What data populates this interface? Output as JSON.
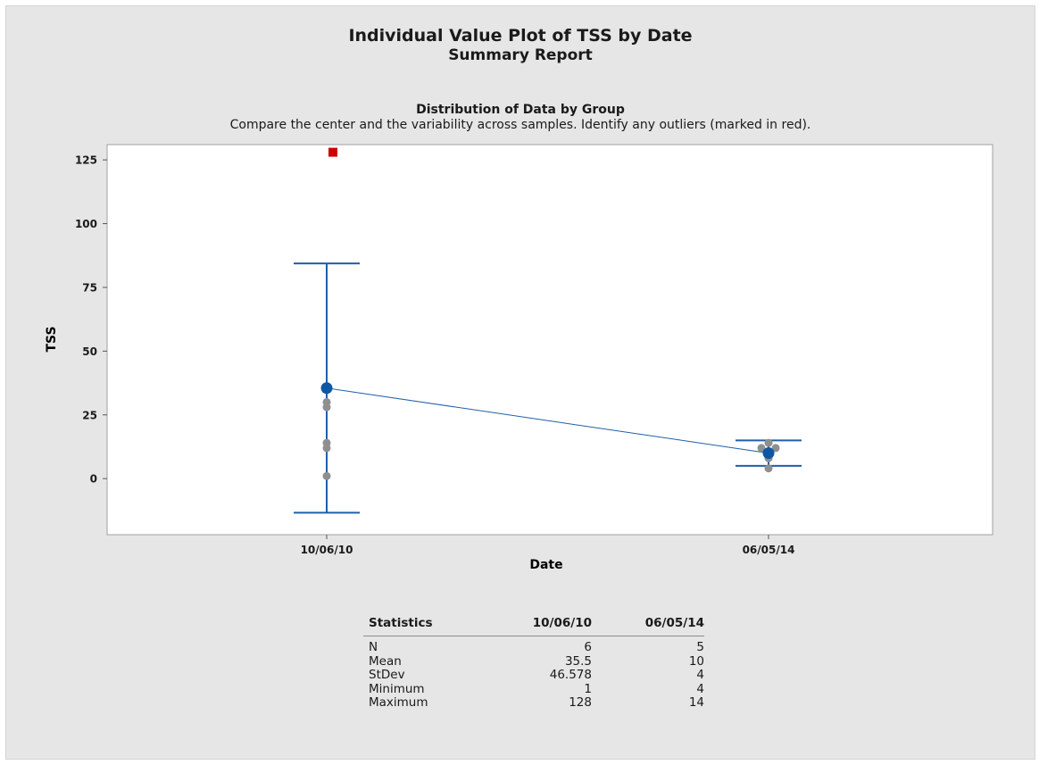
{
  "report": {
    "title": "Individual Value Plot of TSS by Date",
    "subtitle": "Summary Report",
    "panel_title": "Distribution of Data by Group",
    "panel_subtitle": "Compare the center and the variability across samples. Identify any outliers (marked in red)."
  },
  "colors": {
    "mean_line": "#1f5fa8",
    "mean_marker": "#0f57a3",
    "points": "#8f8f8f",
    "outlier": "#cc0000",
    "plot_bg": "#ffffff",
    "report_bg": "#e6e6e6"
  },
  "chart_data": {
    "type": "scatter",
    "title": "Distribution of Data by Group",
    "xlabel": "Date",
    "ylabel": "TSS",
    "categories": [
      "10/06/10",
      "06/05/14"
    ],
    "ylim": [
      -22,
      131
    ],
    "yticks": [
      0,
      25,
      50,
      75,
      100,
      125
    ],
    "grid": false,
    "groups": [
      {
        "name": "10/06/10",
        "points": [
          1,
          12,
          14,
          28,
          30
        ],
        "outliers": [
          128
        ],
        "mean": 35.5,
        "interval": [
          -13.4,
          84.4
        ]
      },
      {
        "name": "06/05/14",
        "points": [
          4,
          8,
          12,
          12,
          14
        ],
        "outliers": [],
        "mean": 10,
        "interval": [
          5,
          15
        ]
      }
    ]
  },
  "statistics": {
    "header": [
      "Statistics",
      "10/06/10",
      "06/05/14"
    ],
    "rows": [
      [
        "N",
        "6",
        "5"
      ],
      [
        "Mean",
        "35.5",
        "10"
      ],
      [
        "StDev",
        "46.578",
        "4"
      ],
      [
        "Minimum",
        "1",
        "4"
      ],
      [
        "Maximum",
        "128",
        "14"
      ]
    ]
  }
}
